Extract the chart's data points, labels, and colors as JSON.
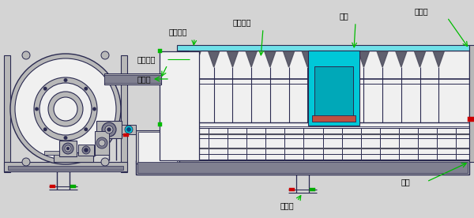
{
  "bg_color": "#d4d4d4",
  "line_color": "#2a2a50",
  "cyan_color": "#00c8d8",
  "light_cyan": "#70e0e8",
  "cyan_mid": "#00a8b8",
  "red_color": "#cc0000",
  "green_color": "#00bb00",
  "gray_light": "#b8b8b8",
  "gray_mid": "#808090",
  "gray_dark": "#505060",
  "white": "#f0f0f0",
  "labels": {
    "fan_dong": "传动系统",
    "jin_liao": "进料管",
    "fan_chong": "反冲洗管",
    "tui_song": "推送绞龙",
    "wang_tong": "网筒",
    "chu_tong": "出通口",
    "chu_shui": "出水管",
    "tuo_lun": "托轮"
  }
}
